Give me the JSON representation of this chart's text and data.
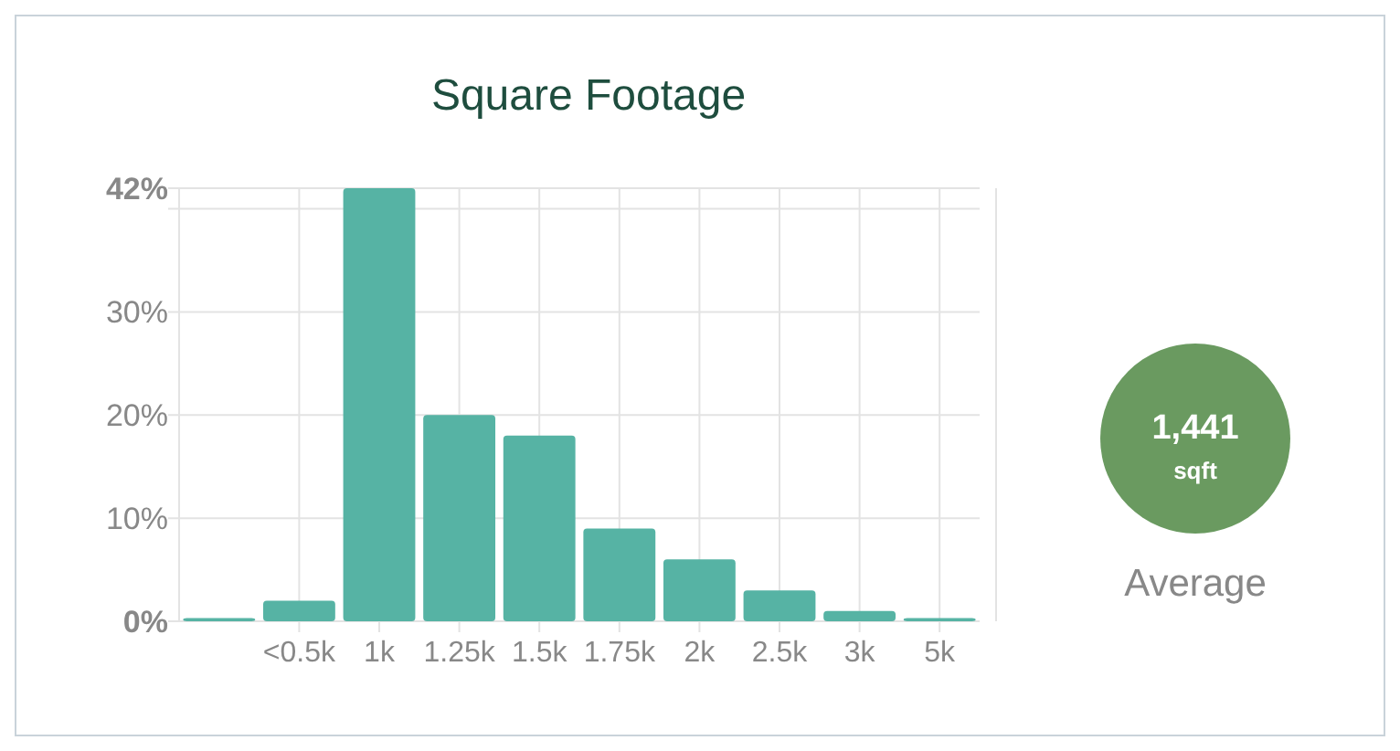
{
  "chart_data": {
    "type": "bar",
    "title": "Square Footage",
    "categories": [
      null,
      "<0.5k",
      "1k",
      "1.25k",
      "1.5k",
      "1.75k",
      "2k",
      "2.5k",
      "3k",
      "5k"
    ],
    "values": [
      0.3,
      2,
      42,
      20,
      18,
      9,
      6,
      3,
      1,
      0.3
    ],
    "color": "#56b3a4",
    "ylim": [
      0,
      42
    ],
    "yticks": [
      {
        "value": 0,
        "label": "0%"
      },
      {
        "value": 10,
        "label": "10%"
      },
      {
        "value": 20,
        "label": "20%"
      },
      {
        "value": 30,
        "label": "30%"
      },
      {
        "value": 40,
        "label": null
      },
      {
        "value": 42,
        "label": "42%"
      }
    ],
    "grid": true,
    "annotations": [
      "1,441",
      "sqft",
      "Average"
    ]
  }
}
